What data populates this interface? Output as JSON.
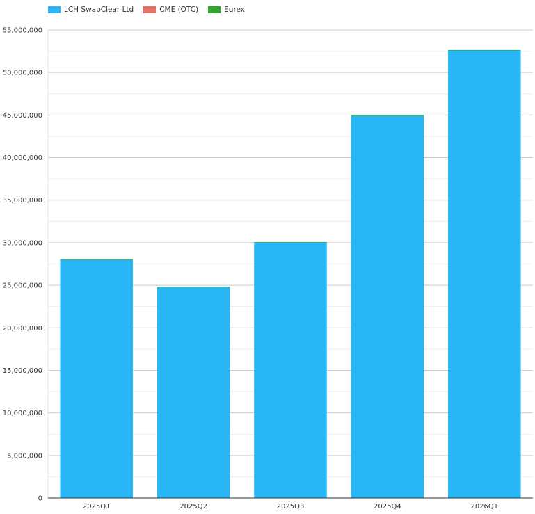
{
  "chart_data": {
    "type": "bar",
    "stacked": true,
    "categories": [
      "2025Q1",
      "2025Q2",
      "2025Q3",
      "2025Q4",
      "2026Q1"
    ],
    "series": [
      {
        "name": "LCH SwapClear Ltd",
        "color": "#29b6f6",
        "values": [
          28000000,
          24800000,
          30000000,
          44900000,
          52600000
        ]
      },
      {
        "name": "CME (OTC)",
        "color": "#e57368",
        "values": [
          0,
          0,
          0,
          0,
          0
        ]
      },
      {
        "name": "Eurex",
        "color": "#2ea62e",
        "values": [
          60000,
          40000,
          80000,
          120000,
          40000
        ]
      }
    ],
    "yticks": [
      "0",
      "5,000,000",
      "10,000,000",
      "15,000,000",
      "20,000,000",
      "25,000,000",
      "30,000,000",
      "35,000,000",
      "40,000,000",
      "45,000,000",
      "50,000,000",
      "55,000,000"
    ],
    "ylim": [
      0,
      55000000
    ],
    "grid": true,
    "legend_position": "top-left"
  }
}
